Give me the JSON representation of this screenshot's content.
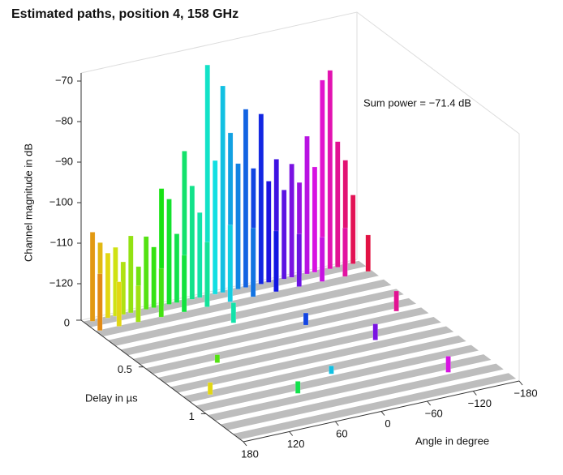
{
  "chart_data": {
    "type": "bar3d",
    "title": "Estimated paths, position 4, 158 GHz",
    "zlabel": "Channel magnitude in dB",
    "xlabel": "Delay in µs",
    "ylabel": "Angle in degree",
    "annotation": "Sum power = −71.4 dB",
    "zlim": [
      -129,
      -68
    ],
    "zticks": [
      {
        "value": -70,
        "label": "−70"
      },
      {
        "value": -80,
        "label": "−80"
      },
      {
        "value": -90,
        "label": "−90"
      },
      {
        "value": -100,
        "label": "−100"
      },
      {
        "value": -110,
        "label": "−110"
      },
      {
        "value": -120,
        "label": "−120"
      }
    ],
    "delaylim": [
      0,
      1.3
    ],
    "delayticks": [
      0,
      0.5,
      1
    ],
    "anglelim": [
      180,
      -180
    ],
    "angleticks": [
      180,
      120,
      60,
      0,
      {
        "value": -60,
        "label": "−60"
      },
      {
        "value": -120,
        "label": "−120"
      },
      {
        "value": -180,
        "label": "−180"
      }
    ],
    "color_by": "angle",
    "angles": [
      170,
      160,
      150,
      140,
      130,
      120,
      110,
      100,
      90,
      80,
      70,
      60,
      50,
      40,
      30,
      20,
      10,
      0,
      -10,
      -20,
      -30,
      -40,
      -50,
      -60,
      -70,
      -80,
      -90,
      -100,
      -110,
      -120,
      -130,
      -140,
      -150,
      -160,
      -170,
      175,
      150,
      125,
      95,
      65,
      35,
      5,
      -25,
      -55,
      -85,
      -115,
      -145,
      -175,
      30,
      -40,
      100,
      -90,
      150,
      0,
      -150,
      60,
      -120
    ],
    "delays": [
      0.03,
      0.03,
      0.03,
      0.03,
      0.03,
      0.03,
      0.03,
      0.03,
      0.03,
      0.03,
      0.03,
      0.03,
      0.03,
      0.03,
      0.03,
      0.03,
      0.03,
      0.03,
      0.03,
      0.03,
      0.03,
      0.03,
      0.03,
      0.03,
      0.03,
      0.03,
      0.03,
      0.03,
      0.03,
      0.03,
      0.03,
      0.03,
      0.03,
      0.03,
      0.03,
      0.12,
      0.12,
      0.12,
      0.12,
      0.12,
      0.12,
      0.12,
      0.12,
      0.12,
      0.12,
      0.12,
      0.12,
      0.12,
      0.3,
      0.45,
      0.6,
      0.7,
      0.85,
      0.9,
      0.5,
      1.0,
      1.1
    ],
    "values": [
      -107,
      -110,
      -113,
      -112,
      -116,
      -110,
      -118,
      -111,
      -114,
      -100,
      -103,
      -112,
      -92,
      -101,
      -108,
      -72,
      -96,
      -78,
      -90,
      -98,
      -85,
      -100,
      -87,
      -104,
      -99,
      -107,
      -101,
      -106,
      -95,
      -103,
      -82,
      -80,
      -98,
      -103,
      -112,
      -115,
      -118,
      -120,
      -117,
      -115,
      -113,
      -110,
      -112,
      -114,
      -116,
      -118,
      -117,
      -120,
      -124,
      -126,
      -127,
      -125,
      -126,
      -127,
      -124,
      -126,
      -125
    ]
  }
}
